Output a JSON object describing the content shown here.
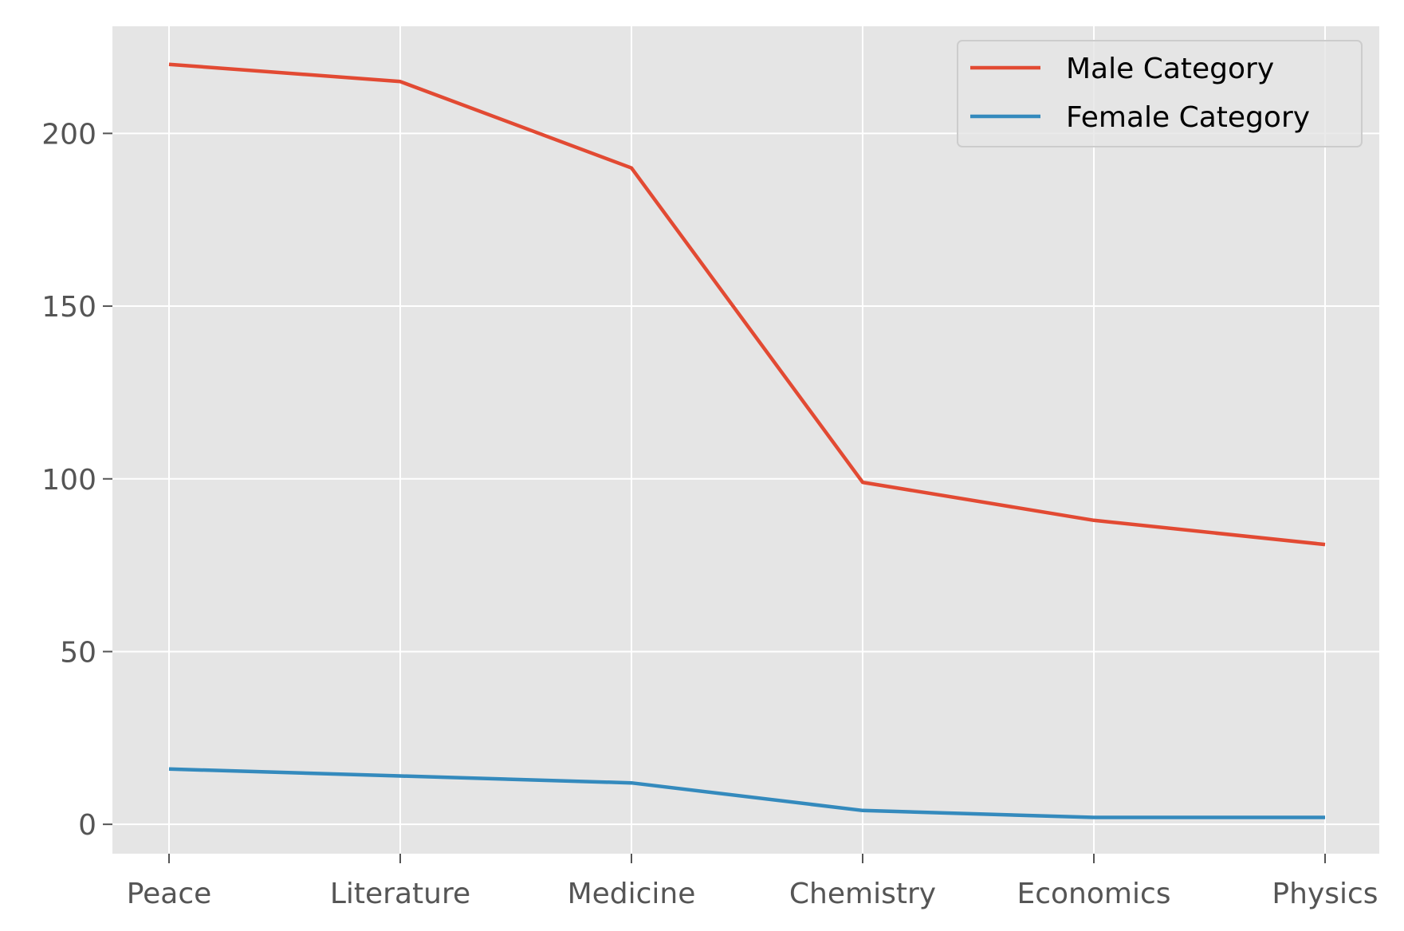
{
  "chart_data": {
    "type": "line",
    "categories": [
      "Peace",
      "Literature",
      "Medicine",
      "Chemistry",
      "Economics",
      "Physics"
    ],
    "series": [
      {
        "name": "Male Category",
        "values": [
          220,
          215,
          190,
          99,
          88,
          81
        ],
        "color": "#E24A33"
      },
      {
        "name": "Female Category",
        "values": [
          16,
          14,
          12,
          4,
          2,
          2
        ],
        "color": "#348ABD"
      }
    ],
    "title": "",
    "xlabel": "",
    "ylabel": "",
    "ylim": [
      -8.5,
      231
    ],
    "yticks": [
      0,
      50,
      100,
      150,
      200
    ],
    "grid": true,
    "legend": "top-right",
    "plot_background": "#E5E5E5",
    "grid_color": "#FFFFFF"
  }
}
